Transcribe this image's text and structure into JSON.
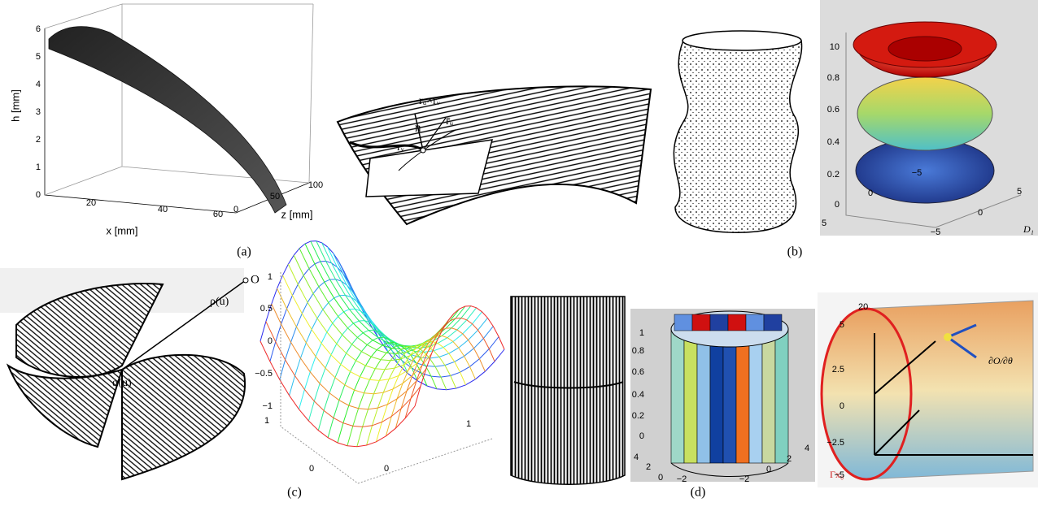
{
  "figure": {
    "a": {
      "label": "(a)",
      "h_axis": "h [mm]",
      "x_axis": "x [mm]",
      "z_axis": "z [mm]",
      "h_ticks": [
        "0",
        "1",
        "2",
        "3",
        "4",
        "5",
        "6"
      ],
      "x_ticks": [
        "20",
        "40",
        "60"
      ],
      "z_ticks": [
        "0",
        "50",
        "100"
      ]
    },
    "b": {
      "label": "(b)",
      "cross": "rᵤ×rᵥ",
      "normal": "n",
      "ru": "r̄ᵤ",
      "rv": "rᵥ",
      "z_ticks": [
        "10",
        "0.8",
        "0.6",
        "0.4",
        "0.2",
        "0"
      ],
      "x_ticks": [
        "5",
        "0",
        "−5"
      ],
      "y_ticks": [
        "−5",
        "0",
        "5"
      ],
      "corner": "D₁"
    },
    "c": {
      "label": "(c)",
      "origin": "O",
      "rho": "ρ(u)",
      "alpha": "α(u)",
      "z_ticks": [
        "1",
        "0.5",
        "0",
        "−0.5",
        "−1"
      ],
      "x_ticks": [
        "1",
        "0"
      ],
      "y_ticks": [
        "0",
        "1"
      ]
    },
    "d": {
      "label": "(d)",
      "z_ticks": [
        "1",
        "0.8",
        "0.6",
        "0.4",
        "0.2",
        "0"
      ],
      "x_ticks": [
        "4",
        "2",
        "0",
        "−2"
      ],
      "y_ticks": [
        "−2",
        "0",
        "2",
        "4"
      ],
      "r_ticks": [
        "5",
        "2.5",
        "0",
        "−2.5",
        "−5"
      ],
      "top_tick": "20",
      "curve": "Γx₀",
      "derivative": "∂O/∂θ"
    }
  }
}
